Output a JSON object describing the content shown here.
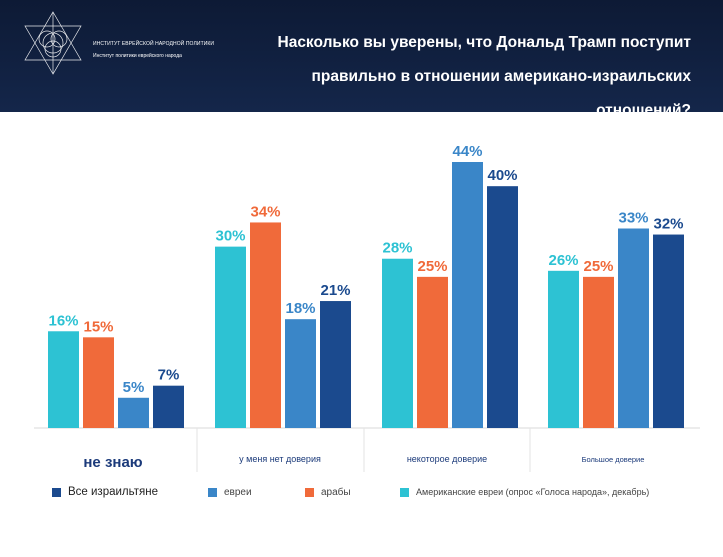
{
  "header": {
    "title_line1": "Насколько вы уверены, что Дональд Трамп поступит",
    "title_line2": "правильно в отношении американо-израильских отношений?",
    "logo_line1": "ИНСТИТУТ ЕВРЕЙСКОЙ НАРОДНОЙ ПОЛИТИКИ",
    "logo_line2": "Институт политики еврейского народа"
  },
  "colors": {
    "all_israelis": "#1b4a8e",
    "jews": "#3a86c8",
    "arabs": "#f06a3a",
    "american_jews": "#2dc2d3",
    "header_bg": "#0d1a35"
  },
  "legend": [
    {
      "label": "Все израильтяне",
      "color": "#1b4a8e"
    },
    {
      "label": "евреи",
      "color": "#3a86c8"
    },
    {
      "label": "арабы",
      "color": "#f06a3a"
    },
    {
      "label": "Американские евреи (опрос «Голоса народа», декабрь)",
      "color": "#2dc2d3"
    }
  ],
  "chart_data": {
    "type": "bar",
    "title": "Насколько вы уверены, что Дональд Трамп поступит правильно в отношении американо-израильских отношений?",
    "categories": [
      "не знаю",
      "у меня нет доверия",
      "некоторое доверие",
      "Большое доверие"
    ],
    "series": [
      {
        "name": "Американские евреи (опрос «Голоса народа», декабрь)",
        "color": "#2dc2d3",
        "values": [
          16,
          30,
          28,
          26
        ],
        "labels": [
          "16%",
          "30%",
          "28%",
          "26%"
        ]
      },
      {
        "name": "арабы",
        "color": "#f06a3a",
        "values": [
          15,
          34,
          25,
          25
        ],
        "labels": [
          "15%",
          "34%",
          "25%",
          "25%"
        ]
      },
      {
        "name": "евреи",
        "color": "#3a86c8",
        "values": [
          5,
          18,
          44,
          33
        ],
        "labels": [
          "5%",
          "18%",
          "44%",
          "33%"
        ]
      },
      {
        "name": "Все израильтяне",
        "color": "#1b4a8e",
        "values": [
          7,
          21,
          40,
          32
        ],
        "labels": [
          "7%",
          "21%",
          "40%",
          "32%"
        ]
      }
    ],
    "ylim": [
      0,
      44
    ],
    "grid": false,
    "legend_position": "bottom"
  }
}
